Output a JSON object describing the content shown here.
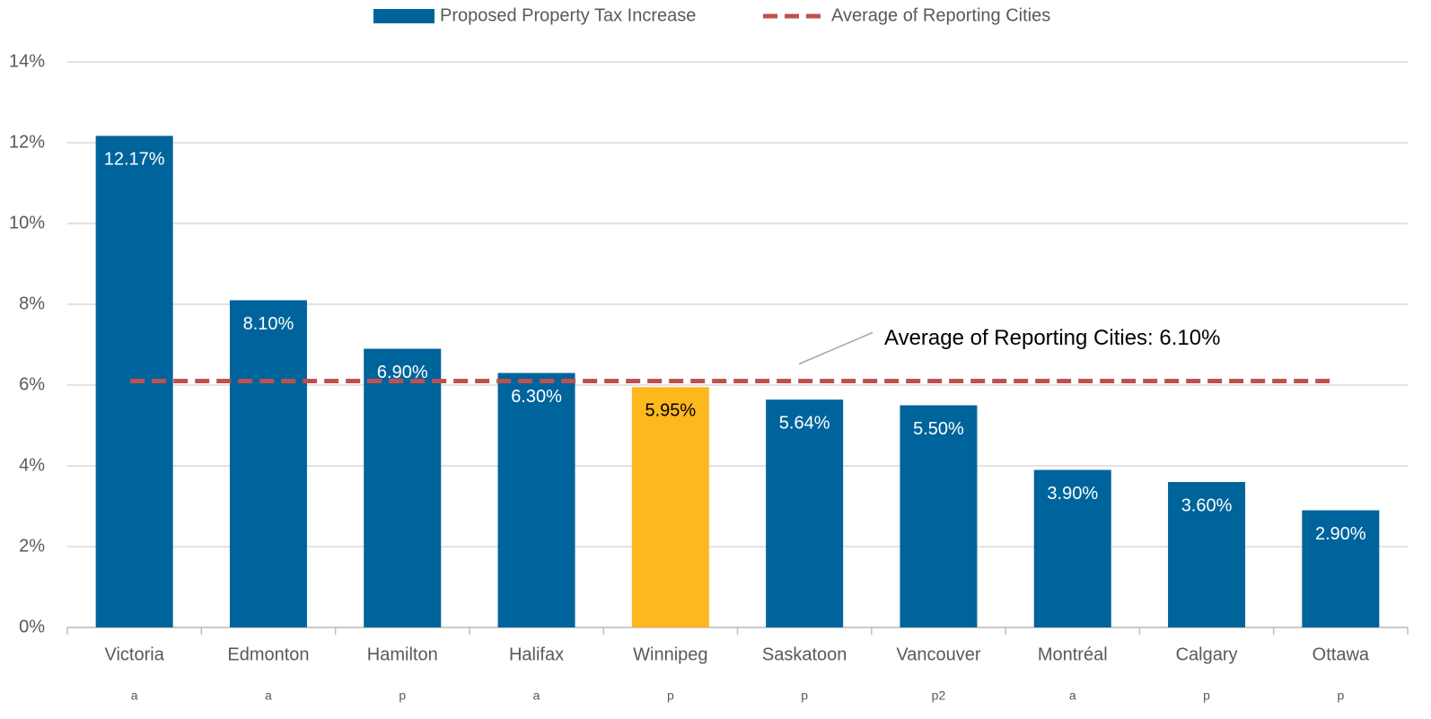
{
  "chart_data": {
    "type": "bar",
    "categories": [
      "Victoria",
      "Edmonton",
      "Hamilton",
      "Halifax",
      "Winnipeg",
      "Saskatoon",
      "Vancouver",
      "Montréal",
      "Calgary",
      "Ottawa"
    ],
    "sublabels": [
      "a",
      "a",
      "p",
      "a",
      "p",
      "p",
      "p2",
      "a",
      "p",
      "p"
    ],
    "series": [
      {
        "name": "Proposed Property Tax Increase",
        "color": "#00649c",
        "colors": [
          "#00649c",
          "#00649c",
          "#00649c",
          "#00649c",
          "#fdb71f",
          "#00649c",
          "#00649c",
          "#00649c",
          "#00649c",
          "#00649c"
        ],
        "values": [
          12.17,
          8.1,
          6.9,
          6.3,
          5.95,
          5.64,
          5.5,
          3.9,
          3.6,
          2.9
        ],
        "value_labels": [
          "12.17%",
          "8.10%",
          "6.90%",
          "6.30%",
          "5.95%",
          "5.64%",
          "5.50%",
          "3.90%",
          "3.60%",
          "2.90%"
        ]
      }
    ],
    "average": {
      "name": "Average of Reporting Cities",
      "value": 6.1,
      "color": "#c0504d",
      "annotation": "Average of Reporting Cities: 6.10%"
    },
    "ylim": [
      0,
      14
    ],
    "yticks": [
      {
        "value": 0,
        "label": "0%"
      },
      {
        "value": 2,
        "label": "2%"
      },
      {
        "value": 4,
        "label": "4%"
      },
      {
        "value": 6,
        "label": "6%"
      },
      {
        "value": 8,
        "label": "8%"
      },
      {
        "value": 10,
        "label": "10%"
      },
      {
        "value": 12,
        "label": "12%"
      },
      {
        "value": 14,
        "label": "14%"
      }
    ],
    "grid": true,
    "legend": "top"
  }
}
